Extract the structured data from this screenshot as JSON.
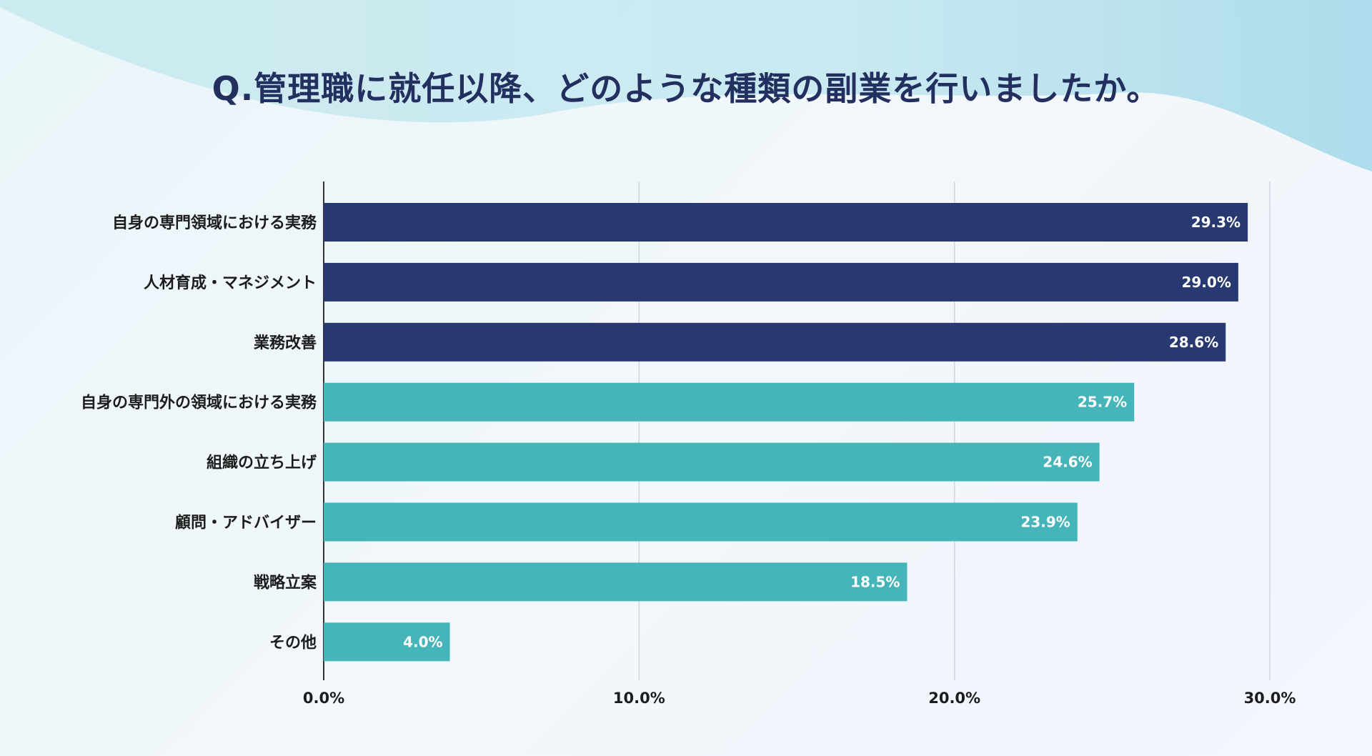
{
  "title": "Q.管理職に就任以降、どのような種類の副業を行いましたか。",
  "colors": {
    "primary": "#283870",
    "secondary": "#46b5ba",
    "grid": "#cfd5db",
    "axis": "#333333",
    "title": "#23305f",
    "wave_light": "#c5e8ef",
    "wave_dark": "#a8dcea"
  },
  "chart_data": {
    "type": "bar",
    "orientation": "horizontal",
    "title": "Q.管理職に就任以降、どのような種類の副業を行いましたか。",
    "categories": [
      "自身の専門領域における実務",
      "人材育成・マネジメント",
      "業務改善",
      "自身の専門外の領域における実務",
      "組織の立ち上げ",
      "顧問・アドバイザー",
      "戦略立案",
      "その他"
    ],
    "values": [
      29.3,
      29.0,
      28.6,
      25.7,
      24.6,
      23.9,
      18.5,
      4.0
    ],
    "value_labels": [
      "29.3%",
      "29.0%",
      "28.6%",
      "25.7%",
      "24.6%",
      "23.9%",
      "18.5%",
      "4.0%"
    ],
    "highlight_count": 3,
    "xlim": [
      0,
      30
    ],
    "xticks": [
      0,
      10,
      20,
      30
    ],
    "xtick_labels": [
      "0.0%",
      "10.0%",
      "20.0%",
      "30.0%"
    ],
    "xlabel": "",
    "ylabel": "",
    "grid": true
  }
}
